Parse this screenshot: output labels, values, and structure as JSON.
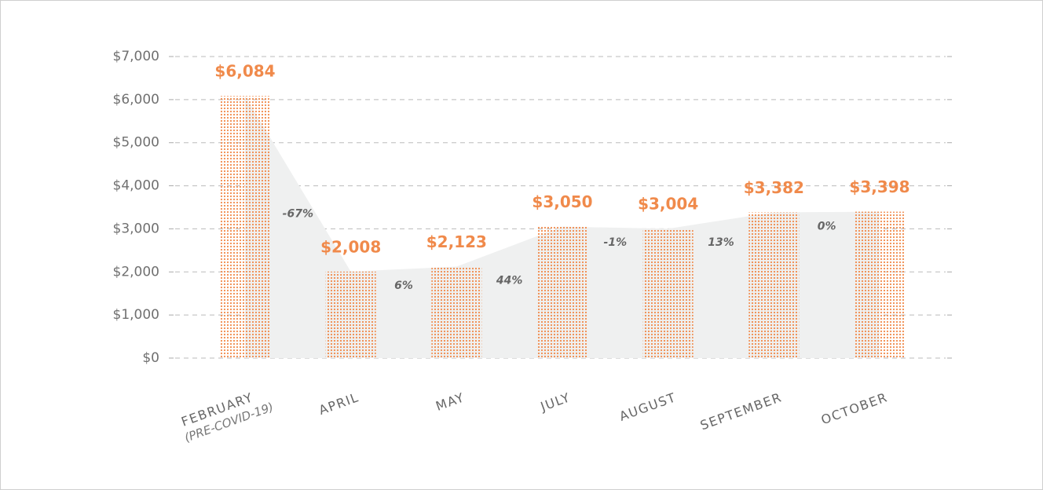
{
  "chart_data": {
    "type": "bar",
    "categories": [
      "FEBRUARY",
      "APRIL",
      "MAY",
      "JULY",
      "AUGUST",
      "SEPTEMBER",
      "OCTOBER"
    ],
    "category_note": "(PRE-COVID-19)",
    "values": [
      6084,
      2008,
      2123,
      3050,
      3004,
      3382,
      3398
    ],
    "value_labels": [
      "$6,084",
      "$2,008",
      "$2,123",
      "$3,050",
      "$3,004",
      "$3,382",
      "$3,398"
    ],
    "changes": [
      -67,
      6,
      44,
      -1,
      13,
      0
    ],
    "change_labels": [
      "-67%",
      "6%",
      "44%",
      "-1%",
      "13%",
      "0%"
    ],
    "color": "#f08a4b",
    "ylim": [
      0,
      7000
    ],
    "yticks": [
      {
        "value": 0,
        "label": "$0"
      },
      {
        "value": 1000,
        "label": "$1,000"
      },
      {
        "value": 2000,
        "label": "$2,000"
      },
      {
        "value": 3000,
        "label": "$3,000"
      },
      {
        "value": 4000,
        "label": "$4,000"
      },
      {
        "value": 5000,
        "label": "$5,000"
      },
      {
        "value": 6000,
        "label": "$6,000"
      },
      {
        "value": 7000,
        "label": "$7,000"
      }
    ],
    "grid": true
  }
}
